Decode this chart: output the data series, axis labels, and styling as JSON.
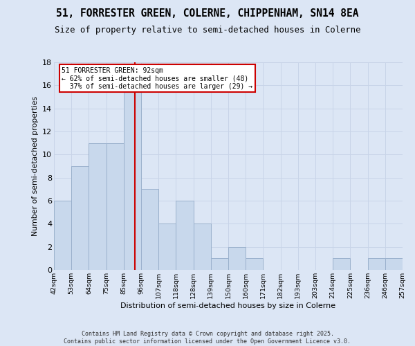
{
  "title": "51, FORRESTER GREEN, COLERNE, CHIPPENHAM, SN14 8EA",
  "subtitle": "Size of property relative to semi-detached houses in Colerne",
  "xlabel": "Distribution of semi-detached houses by size in Colerne",
  "ylabel": "Number of semi-detached properties",
  "bin_labels": [
    "42sqm",
    "53sqm",
    "64sqm",
    "75sqm",
    "85sqm",
    "96sqm",
    "107sqm",
    "118sqm",
    "128sqm",
    "139sqm",
    "150sqm",
    "160sqm",
    "171sqm",
    "182sqm",
    "193sqm",
    "203sqm",
    "214sqm",
    "225sqm",
    "236sqm",
    "246sqm",
    "257sqm"
  ],
  "counts": [
    6,
    9,
    11,
    11,
    16,
    7,
    4,
    6,
    4,
    1,
    2,
    1,
    0,
    0,
    0,
    0,
    1,
    0,
    1,
    1
  ],
  "bar_color": "#c8d8ec",
  "bar_edge_color": "#9ab0cc",
  "grid_color": "#c8d4e8",
  "background_color": "#dce6f5",
  "property_sqm": 92,
  "property_bin_index": 4,
  "property_bin_lower": 85,
  "property_bin_upper": 96,
  "redline_color": "#cc0000",
  "annotation_line1": "51 FORRESTER GREEN: 92sqm",
  "annotation_line2": "← 62% of semi-detached houses are smaller (48)",
  "annotation_line3": "  37% of semi-detached houses are larger (29) →",
  "annotation_box_color": "#ffffff",
  "annotation_border_color": "#cc0000",
  "footer_line1": "Contains HM Land Registry data © Crown copyright and database right 2025.",
  "footer_line2": "Contains public sector information licensed under the Open Government Licence v3.0.",
  "ylim": [
    0,
    18
  ],
  "yticks": [
    0,
    2,
    4,
    6,
    8,
    10,
    12,
    14,
    16,
    18
  ]
}
